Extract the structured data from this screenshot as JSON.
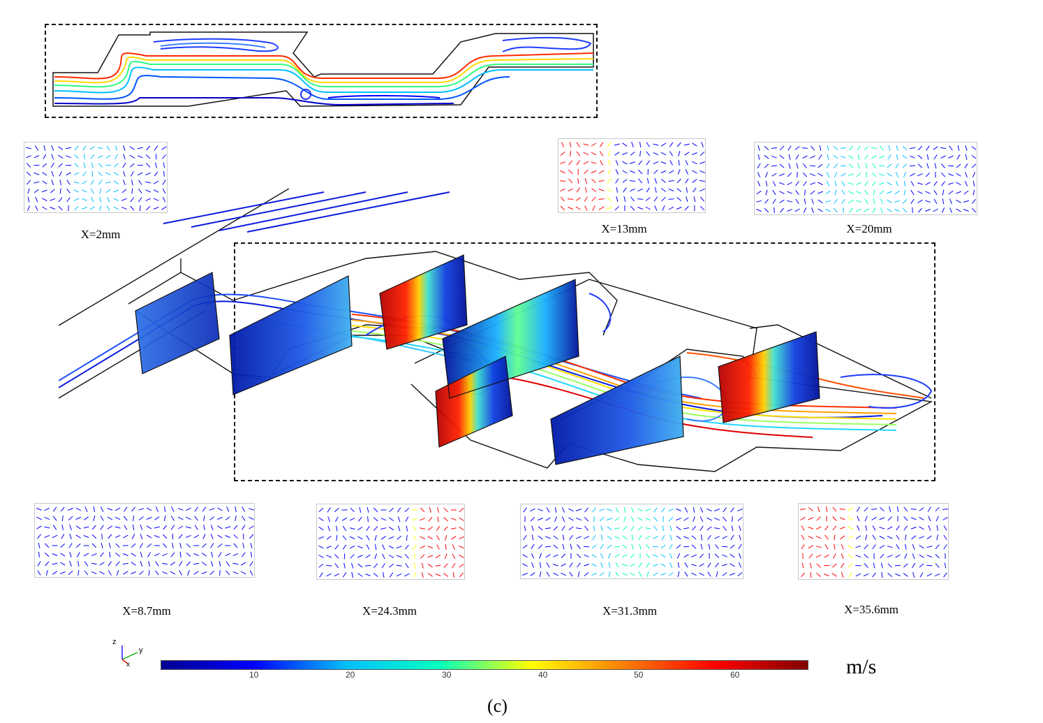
{
  "sections": [
    {
      "id": "x2",
      "label": "X=2mm"
    },
    {
      "id": "x13",
      "label": "X=13mm"
    },
    {
      "id": "x20",
      "label": "X=20mm"
    },
    {
      "id": "x87",
      "label": "X=8.7mm"
    },
    {
      "id": "x243",
      "label": "X=24.3mm"
    },
    {
      "id": "x313",
      "label": "X=31.3mm"
    },
    {
      "id": "x356",
      "label": "X=35.6mm"
    }
  ],
  "colorbar": {
    "ticks": [
      "10",
      "20",
      "30",
      "40",
      "50",
      "60"
    ],
    "unit": "m/s",
    "colors": [
      "#00008f",
      "#0000ff",
      "#00bfff",
      "#00ffbf",
      "#ffff00",
      "#ff8000",
      "#ff0000",
      "#800000"
    ]
  },
  "axes": {
    "z": "z",
    "y": "y",
    "x": "x"
  },
  "caption": "(c)"
}
